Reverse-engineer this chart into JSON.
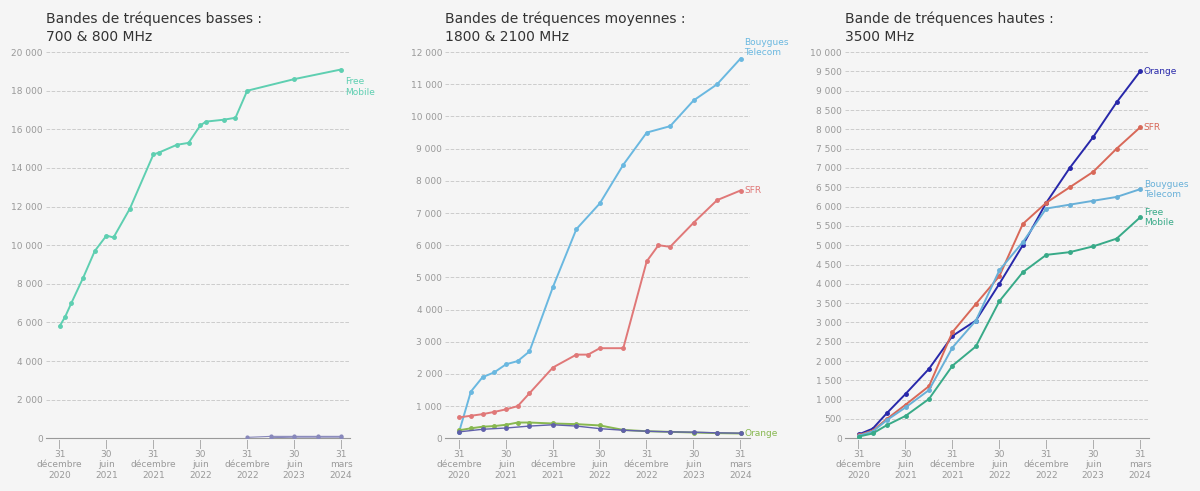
{
  "titles": [
    "Bandes de tréquences basses :\n700 & 800 MHz",
    "Bandes de tréquences moyennes :\n1800 & 2100 MHz",
    "Bande de tréquences hautes :\n3500 MHz"
  ],
  "x_tick_labels": [
    [
      "|\n31\ndécembre\n2020",
      "|\n30\njuin\n2021",
      "|\n31\ndécembre\n2021",
      "|\n30\njuin\n2022",
      "|\n31\ndécembre\n2022",
      "|\n30\njuin\n2023",
      "|\n31\nmars\n2024"
    ],
    [
      "|\n31\ndécembre\n2020",
      "|\n30\njuin\n2021",
      "|\n31\ndécembre\n2021",
      "|\n30\njuin\n2022",
      "|\n31\ndécembre\n2022",
      "|\n30\njuin\n2023",
      "|\n31\nmars\n2024"
    ],
    [
      "|\n31\ndécembre\n2020",
      "|\n30\njuin\n2021",
      "|\n31\ndécembre\n2021",
      "|\n30\njuin\n2022",
      "|\n31\ndécembre\n2022",
      "|\n30\njuin\n2023",
      "|\n31\nmars\n2024"
    ]
  ],
  "x_tick_pos": [
    0,
    1,
    2,
    3,
    4,
    5,
    6
  ],
  "panel1": {
    "free_mobile": {
      "color": "#5ecfb1",
      "label": "Free\nMobile",
      "data_x": [
        0,
        0.12,
        0.25,
        0.5,
        0.75,
        1.0,
        1.15,
        1.5,
        2.0,
        2.12,
        2.5,
        2.75,
        3.0,
        3.12,
        3.5,
        3.75,
        4.0,
        5.0,
        6.0
      ],
      "data_y": [
        5800,
        6300,
        7000,
        8300,
        9700,
        10500,
        10400,
        11900,
        14700,
        14800,
        15200,
        15300,
        16200,
        16400,
        16500,
        16600,
        18000,
        18600,
        19100
      ]
    },
    "other1": {
      "color": "#8888bb",
      "data_x": [
        4.0,
        4.5,
        5.0,
        5.5,
        6.0
      ],
      "data_y": [
        50,
        100,
        100,
        100,
        100
      ]
    },
    "other2": {
      "color": "#8888bb",
      "data_x": [
        4.5,
        5.0,
        5.5,
        6.0
      ],
      "data_y": [
        30,
        60,
        60,
        60
      ]
    },
    "ylim": [
      0,
      20000
    ],
    "yticks": [
      0,
      2000,
      4000,
      6000,
      8000,
      10000,
      12000,
      14000,
      16000,
      18000,
      20000
    ]
  },
  "panel2": {
    "bouygues": {
      "color": "#6ab8e0",
      "label": "Bouygues\nTelecom",
      "data_x": [
        0,
        0.25,
        0.5,
        0.75,
        1.0,
        1.25,
        1.5,
        2.0,
        2.5,
        3.0,
        3.5,
        4.0,
        4.5,
        5.0,
        5.5,
        6.0
      ],
      "data_y": [
        200,
        1450,
        1900,
        2050,
        2300,
        2400,
        2700,
        4700,
        6500,
        7300,
        8500,
        9500,
        9700,
        10500,
        11000,
        11800
      ]
    },
    "sfr": {
      "color": "#e07878",
      "label": "SFR",
      "data_x": [
        0,
        0.25,
        0.5,
        0.75,
        1.0,
        1.25,
        1.5,
        2.0,
        2.5,
        2.75,
        3.0,
        3.5,
        4.0,
        4.25,
        4.5,
        5.0,
        5.5,
        6.0
      ],
      "data_y": [
        650,
        700,
        750,
        820,
        900,
        1000,
        1400,
        2200,
        2600,
        2600,
        2800,
        2800,
        5500,
        6000,
        5950,
        6700,
        7400,
        7700
      ]
    },
    "orange": {
      "color": "#88b850",
      "label": "Orange",
      "data_x": [
        0,
        0.25,
        0.5,
        0.75,
        1.0,
        1.25,
        1.5,
        2.0,
        2.5,
        3.0,
        3.5,
        4.0,
        4.5,
        5.0,
        5.5,
        6.0
      ],
      "data_y": [
        250,
        310,
        360,
        380,
        420,
        490,
        490,
        460,
        440,
        400,
        260,
        220,
        200,
        180,
        160,
        150
      ]
    },
    "sfr_bottom": {
      "color": "#6060aa",
      "label": "",
      "data_x": [
        0,
        0.5,
        1.0,
        1.5,
        2.0,
        2.5,
        3.0,
        3.5,
        4.0,
        4.5,
        5.0,
        5.5,
        6.0
      ],
      "data_y": [
        200,
        280,
        320,
        380,
        420,
        380,
        300,
        250,
        220,
        200,
        190,
        170,
        160
      ]
    },
    "ylim": [
      0,
      12000
    ],
    "yticks": [
      0,
      1000,
      2000,
      3000,
      4000,
      5000,
      6000,
      7000,
      8000,
      9000,
      10000,
      11000,
      12000
    ]
  },
  "panel3": {
    "orange": {
      "color": "#2828aa",
      "label": "Orange",
      "data_x": [
        0,
        0.3,
        0.6,
        1.0,
        1.5,
        2.0,
        2.5,
        3.0,
        3.5,
        4.0,
        4.5,
        5.0,
        5.5,
        6.0
      ],
      "data_y": [
        100,
        250,
        650,
        1150,
        1800,
        2650,
        3050,
        4000,
        5000,
        6100,
        7000,
        7800,
        8700,
        9500
      ]
    },
    "sfr": {
      "color": "#d86858",
      "label": "SFR",
      "data_x": [
        0,
        0.3,
        0.6,
        1.0,
        1.5,
        2.0,
        2.5,
        3.0,
        3.5,
        4.0,
        4.5,
        5.0,
        5.5,
        6.0
      ],
      "data_y": [
        80,
        200,
        500,
        870,
        1350,
        2750,
        3480,
        4200,
        5550,
        6100,
        6500,
        6900,
        7500,
        8050
      ]
    },
    "bouygues": {
      "color": "#68b0d8",
      "label": "Bouygues\nTelecom",
      "data_x": [
        0,
        0.3,
        0.6,
        1.0,
        1.5,
        2.0,
        2.5,
        3.0,
        3.5,
        4.0,
        4.5,
        5.0,
        5.5,
        6.0
      ],
      "data_y": [
        65,
        175,
        470,
        800,
        1250,
        2350,
        3050,
        4350,
        5080,
        5950,
        6050,
        6150,
        6250,
        6450
      ]
    },
    "free": {
      "color": "#38aa88",
      "label": "Free\nMobile",
      "data_x": [
        0,
        0.3,
        0.6,
        1.0,
        1.5,
        2.0,
        2.5,
        3.0,
        3.5,
        4.0,
        4.5,
        5.0,
        5.5,
        6.0
      ],
      "data_y": [
        45,
        125,
        340,
        580,
        1020,
        1880,
        2380,
        3550,
        4300,
        4750,
        4820,
        4970,
        5170,
        5720
      ]
    },
    "ylim": [
      0,
      10000
    ],
    "yticks": [
      0,
      500,
      1000,
      1500,
      2000,
      2500,
      3000,
      3500,
      4000,
      4500,
      5000,
      5500,
      6000,
      6500,
      7000,
      7500,
      8000,
      8500,
      9000,
      9500,
      10000
    ]
  },
  "background_color": "#f5f5f5",
  "grid_color": "#cccccc",
  "axis_color": "#999999",
  "text_color": "#333333",
  "title_fontsize": 10,
  "tick_fontsize": 6.5,
  "label_fontsize": 6.5
}
